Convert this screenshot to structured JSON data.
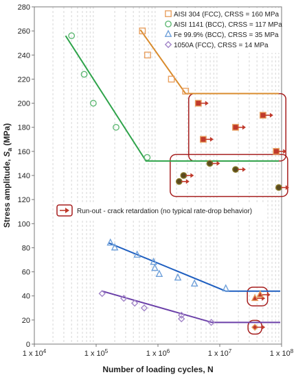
{
  "chart_data": {
    "type": "scatter",
    "xlabel": "Number of loading cycles, N",
    "ylabel_prefix": "Stress amplitude, ",
    "ylabel_symbol": "S",
    "ylabel_subscript": "a",
    "ylabel_suffix": " (MPa)",
    "x_scale": "log",
    "xlim": [
      10000,
      100000000
    ],
    "ylim": [
      0,
      280
    ],
    "ytick_step": 20,
    "grid": "vertical-minor",
    "legend_position": "top-right",
    "x_ticks": [
      {
        "value": 10000,
        "base": "1 x 10",
        "exp": "4"
      },
      {
        "value": 100000,
        "base": "1 x 10",
        "exp": "5"
      },
      {
        "value": 1000000,
        "base": "1 x 10",
        "exp": "6"
      },
      {
        "value": 10000000,
        "base": "1 x 10",
        "exp": "7"
      },
      {
        "value": 100000000,
        "base": "1 x 10",
        "exp": "8"
      }
    ],
    "series": [
      {
        "name": "AISI 304 (FCC), CRSS = 160 MPa",
        "marker": "square",
        "color": "#E8A060",
        "line_color": "#D98B2C",
        "points": [
          [
            560000,
            260
          ],
          [
            680000,
            240
          ],
          [
            1650000,
            220
          ],
          [
            2800000,
            210
          ]
        ],
        "fit": [
          [
            520000,
            261
          ],
          [
            2800000,
            208
          ],
          [
            90000000,
            208
          ]
        ],
        "runouts": [
          [
            4500000,
            200
          ],
          [
            5400000,
            170
          ],
          [
            18000000,
            180
          ],
          [
            50000000,
            190
          ],
          [
            82000000,
            160
          ]
        ]
      },
      {
        "name": "AISI 1141 (BCC), CRSS = 117 MPa",
        "marker": "circle",
        "color": "#5FB874",
        "line_color": "#2EA34A",
        "points": [
          [
            40000,
            256
          ],
          [
            64000,
            224
          ],
          [
            90000,
            200
          ],
          [
            210000,
            180
          ],
          [
            670000,
            155
          ]
        ],
        "fit": [
          [
            32000,
            256
          ],
          [
            640000,
            152
          ],
          [
            90000000,
            152
          ]
        ],
        "runouts": [
          [
            2200000,
            135
          ],
          [
            2600000,
            140
          ],
          [
            6900000,
            150
          ],
          [
            18000000,
            145
          ],
          [
            90000000,
            130
          ]
        ]
      },
      {
        "name": "Fe 99.9% (BCC), CRSS = 35 MPa",
        "marker": "triangle",
        "color": "#6FA0DA",
        "line_color": "#1F5FC0",
        "points": [
          [
            170000,
            84
          ],
          [
            200000,
            80
          ],
          [
            460000,
            74
          ],
          [
            850000,
            68
          ],
          [
            890000,
            63
          ],
          [
            1050000,
            58
          ],
          [
            2100000,
            55
          ],
          [
            3900000,
            50
          ],
          [
            12500000,
            46
          ]
        ],
        "fit": [
          [
            160000,
            84
          ],
          [
            12500000,
            44
          ],
          [
            95000000,
            44
          ]
        ],
        "runouts": [
          [
            37000000,
            38
          ],
          [
            45000000,
            41
          ]
        ]
      },
      {
        "name": "1050A (FCC), CRSS = 14 MPa",
        "marker": "diamond",
        "color": "#A285C8",
        "line_color": "#6A3FA8",
        "points": [
          [
            125000,
            42
          ],
          [
            280000,
            38
          ],
          [
            420000,
            34
          ],
          [
            600000,
            30
          ],
          [
            2400000,
            24
          ],
          [
            2400000,
            21
          ],
          [
            7300000,
            18
          ]
        ],
        "fit": [
          [
            125000,
            44
          ],
          [
            7500000,
            18
          ],
          [
            95000000,
            18
          ]
        ],
        "runouts": [
          [
            37000000,
            14
          ]
        ]
      }
    ],
    "annotation": "Run-out - crack retardation (no typical rate-drop behavior)",
    "runout_color": "#C0392B",
    "box_color": "#A51C1C"
  }
}
